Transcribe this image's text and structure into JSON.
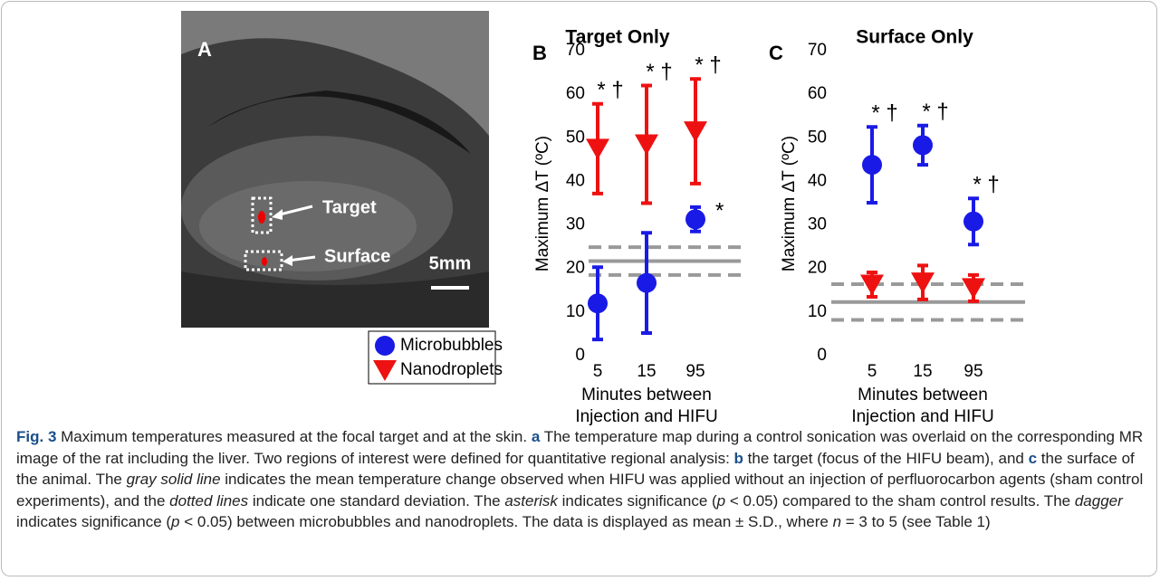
{
  "panel_a": {
    "letter": "A",
    "target_label": "Target",
    "surface_label": "Surface",
    "scale_label": "5mm"
  },
  "chart_data": [
    {
      "type": "errorpoint",
      "letter": "B",
      "title": "Target Only",
      "ylabel": "Maximum ΔT (ºC)",
      "xlabel": [
        "Minutes between",
        "Injection and HIFU"
      ],
      "categories": [
        "5",
        "15",
        "95"
      ],
      "ylim": [
        0,
        70
      ],
      "yticks": [
        0,
        10,
        20,
        30,
        40,
        50,
        60,
        70
      ],
      "sham": {
        "mean": 21.7,
        "sd": 3.2,
        "color": "#999999"
      },
      "series": [
        {
          "name": "Microbubbles",
          "color": "#1a1ae6",
          "marker": "circle",
          "values": [
            12,
            16.7,
            31.3
          ],
          "errors": [
            8.3,
            11.5,
            2.8
          ],
          "annotations": [
            null,
            null,
            "*"
          ]
        },
        {
          "name": "Nanodroplets",
          "color": "#ee1111",
          "marker": "triangle",
          "values": [
            47.5,
            48.5,
            51.5
          ],
          "errors": [
            10.3,
            13.5,
            12
          ],
          "annotations": [
            "* †",
            "* †",
            "* †"
          ]
        }
      ]
    },
    {
      "type": "errorpoint",
      "letter": "C",
      "title": "Surface Only",
      "ylabel": "Maximum ΔT (ºC)",
      "xlabel": [
        "Minutes between",
        "Injection and HIFU"
      ],
      "categories": [
        "5",
        "15",
        "95"
      ],
      "ylim": [
        0,
        70
      ],
      "yticks": [
        0,
        10,
        20,
        30,
        40,
        50,
        60,
        70
      ],
      "sham": {
        "mean": 12.3,
        "sd": 4.1,
        "color": "#999999"
      },
      "series": [
        {
          "name": "Microbubbles",
          "color": "#1a1ae6",
          "marker": "circle",
          "values": [
            43.8,
            48.3,
            30.8
          ],
          "errors": [
            8.7,
            4.5,
            5.3
          ],
          "annotations": [
            "* †",
            "* †",
            "* †"
          ]
        },
        {
          "name": "Nanodroplets",
          "color": "#ee1111",
          "marker": "triangle",
          "values": [
            16.3,
            16.8,
            15.5
          ],
          "errors": [
            2.8,
            3.9,
            3
          ],
          "annotations": [
            null,
            null,
            null
          ]
        }
      ]
    }
  ],
  "caption": [
    {
      "text": "Fig. 3",
      "style": "bold"
    },
    {
      "text": " Maximum temperatures measured at the focal target and at the skin. "
    },
    {
      "text": "a",
      "style": "bold"
    },
    {
      "text": " The temperature map during a control sonication was overlaid on the corresponding MR image of the rat including the liver. Two regions of interest were defined for quantitative regional analysis: "
    },
    {
      "text": "b",
      "style": "bold"
    },
    {
      "text": " the target (focus of the HIFU beam), and "
    },
    {
      "text": "c",
      "style": "bold"
    },
    {
      "text": " the surface of the animal. The "
    },
    {
      "text": "gray solid line",
      "style": "italic"
    },
    {
      "text": " indicates the mean temperature change observed when HIFU was applied without an injection of perfluorocarbon agents (sham control experiments), and the "
    },
    {
      "text": "dotted lines",
      "style": "italic"
    },
    {
      "text": " indicate one standard deviation. The "
    },
    {
      "text": "asterisk",
      "style": "italic"
    },
    {
      "text": " indicates significance ("
    },
    {
      "text": "p",
      "style": "italic"
    },
    {
      "text": " < 0.05) compared to the sham control results. The "
    },
    {
      "text": "dagger",
      "style": "italic"
    },
    {
      "text": " indicates significance ("
    },
    {
      "text": "p",
      "style": "italic"
    },
    {
      "text": " < 0.05) between microbubbles and nanodroplets. The data is displayed as mean ± S.D., where "
    },
    {
      "text": "n",
      "style": "italic"
    },
    {
      "text": " = 3 to 5 (see Table 1)"
    }
  ]
}
